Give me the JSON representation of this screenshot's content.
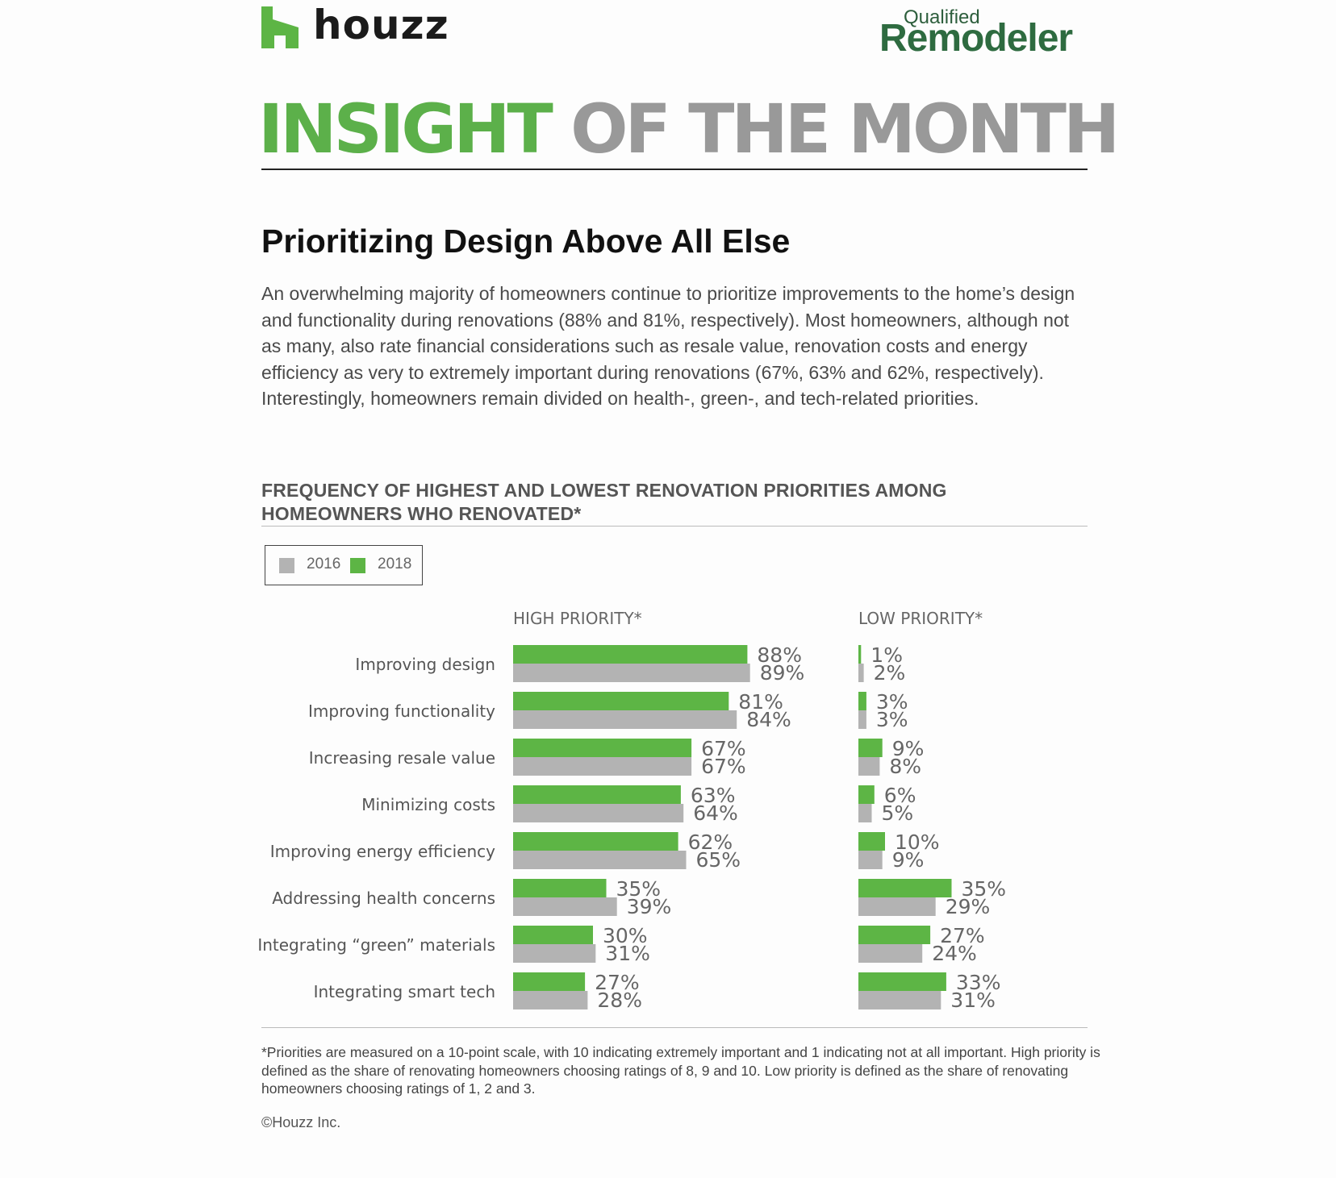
{
  "header": {
    "houzz_word": "houzz",
    "remodeler_top": "Qualified",
    "remodeler_main": "Remodeler"
  },
  "banner": {
    "green_text": "INSIGHT",
    "grey_text": "OF THE MONTH"
  },
  "title": "Prioritizing Design Above All Else",
  "intro": "An overwhelming majority of homeowners continue to prioritize improvements to the home’s design and functionality during renovations (88% and 81%, respectively). Most homeowners, although not as many, also rate financial considerations such as resale value, renovation costs and energy efficiency as very to extremely important during renovations (67%, 63% and 62%, respectively). Interestingly, homeowners remain divided on health-, green-, and tech-related priorities.",
  "chart_title_line1": "FREQUENCY OF HIGHEST AND LOWEST RENOVATION PRIORITIES AMONG",
  "chart_title_line2": "HOMEOWNERS WHO RENOVATED*",
  "legend": [
    {
      "label": "2016",
      "color": "#b3b3b3"
    },
    {
      "label": "2018",
      "color": "#5db545"
    }
  ],
  "chart_data": {
    "type": "bar",
    "orientation": "horizontal",
    "categories": [
      "Improving design",
      "Improving functionality",
      "Increasing resale value",
      "Minimizing costs",
      "Improving energy efficiency",
      "Addressing health concerns",
      "Integrating “green” materials",
      "Integrating smart tech"
    ],
    "panels": [
      {
        "title": "HIGH PRIORITY*",
        "series": [
          {
            "name": "2018",
            "values": [
              88,
              81,
              67,
              63,
              62,
              35,
              30,
              27
            ]
          },
          {
            "name": "2016",
            "values": [
              89,
              84,
              67,
              64,
              65,
              39,
              31,
              28
            ]
          }
        ]
      },
      {
        "title": "LOW PRIORITY*",
        "series": [
          {
            "name": "2018",
            "values": [
              1,
              3,
              9,
              6,
              10,
              35,
              27,
              33
            ]
          },
          {
            "name": "2016",
            "values": [
              2,
              3,
              8,
              5,
              9,
              29,
              24,
              31
            ]
          }
        ]
      }
    ],
    "value_suffix": "%",
    "colors": {
      "2016": "#b3b3b3",
      "2018": "#5db545"
    }
  },
  "footnote": "*Priorities are measured on a 10-point scale, with 10 indicating extremely important and 1 indicating not at all important. High priority is defined as the share of renovating homeowners choosing ratings of 8, 9 and 10. Low priority is defined as the share of renovating homeowners choosing ratings of 1, 2 and 3.",
  "copyright": "©Houzz Inc."
}
